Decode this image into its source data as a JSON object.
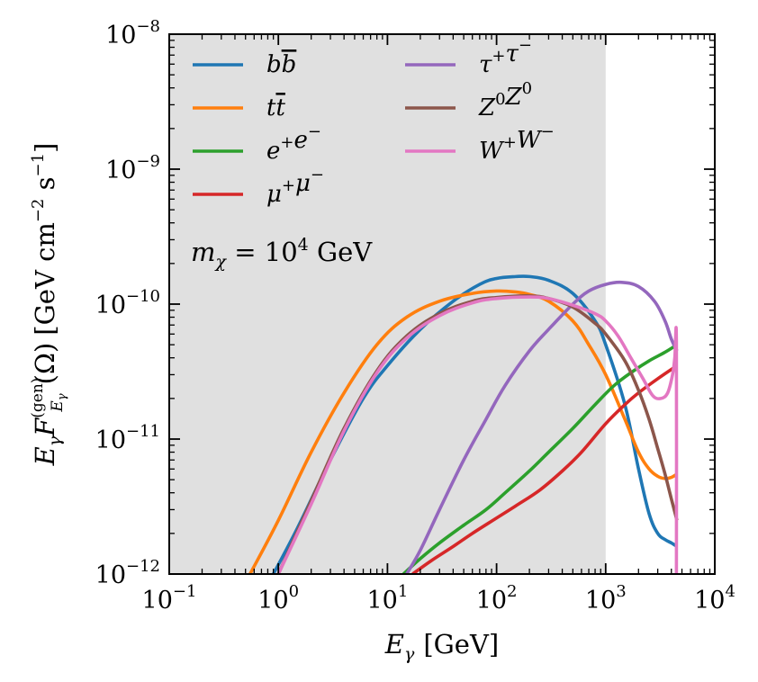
{
  "chart_data": {
    "type": "line",
    "xscale": "log",
    "yscale": "log",
    "xlim": [
      0.1,
      10000
    ],
    "ylim": [
      1e-12,
      1e-08
    ],
    "xlabel": {
      "main": "E",
      "sub": "γ",
      "unit": "[GeV]"
    },
    "ylabel": "E_γ F_{E_γ}^{(gen)}(Ω) [GeV cm^-2 s^-1]",
    "ylabel_parts": {
      "E": "E",
      "gamma": "γ",
      "F": "F",
      "sup": "(gen)",
      "subE": "E",
      "subgamma": "γ",
      "omega": "(Ω)",
      "unit_pre": "[GeV cm",
      "exp1": "−2",
      "unit_mid": " s",
      "exp2": "−1",
      "unit_post": "]"
    },
    "x_ticks": [
      {
        "value": 0.1,
        "base": "10",
        "exp": "−1"
      },
      {
        "value": 1,
        "base": "10",
        "exp": "0"
      },
      {
        "value": 10,
        "base": "10",
        "exp": "1"
      },
      {
        "value": 100,
        "base": "10",
        "exp": "2"
      },
      {
        "value": 1000,
        "base": "10",
        "exp": "3"
      },
      {
        "value": 10000,
        "base": "10",
        "exp": "4"
      }
    ],
    "y_ticks": [
      {
        "value": 1e-12,
        "base": "10",
        "exp": "−12"
      },
      {
        "value": 1e-11,
        "base": "10",
        "exp": "−11"
      },
      {
        "value": 1e-10,
        "base": "10",
        "exp": "−10"
      },
      {
        "value": 1e-09,
        "base": "10",
        "exp": "−9"
      },
      {
        "value": 1e-08,
        "base": "10",
        "exp": "−8"
      }
    ],
    "shaded_region": {
      "x_from": 0.1,
      "x_to": 1000,
      "color": "#e0e0e0"
    },
    "annotation": {
      "m": "m",
      "sub": "χ",
      "eq": " = 10",
      "exp": "4",
      "unit": " GeV"
    },
    "legend_position": "upper-left",
    "series": [
      {
        "name": "bb̄",
        "label_html": "b<tspan style=\"text-decoration:overline\">b</tspan>",
        "label": "b b̄",
        "color": "#1f77b4",
        "x": [
          0.9,
          1.5,
          3,
          6,
          10,
          20,
          40,
          70,
          100,
          150,
          200,
          300,
          500,
          800,
          1000,
          1500,
          2000,
          2500,
          3000,
          3500,
          4000,
          4500
        ],
        "y": [
          1e-12,
          2.2e-12,
          7e-12,
          2e-11,
          3.5e-11,
          6.5e-11,
          1.05e-10,
          1.4e-10,
          1.55e-10,
          1.6e-10,
          1.6e-10,
          1.5e-10,
          1.2e-10,
          7.5e-11,
          5e-11,
          1.8e-11,
          6e-12,
          2.8e-12,
          2e-12,
          1.8e-12,
          1.7e-12,
          1.6e-12
        ]
      },
      {
        "name": "tt̄",
        "label": "t t̄",
        "color": "#ff7f0e",
        "x": [
          0.55,
          1,
          2,
          4,
          8,
          15,
          30,
          60,
          100,
          150,
          200,
          300,
          500,
          700,
          1000,
          1500,
          2000,
          2500,
          3000,
          3500,
          4000,
          4500
        ],
        "y": [
          1e-12,
          2.5e-12,
          8e-12,
          2.2e-11,
          5e-11,
          8e-11,
          1.05e-10,
          1.2e-10,
          1.25e-10,
          1.23e-10,
          1.18e-10,
          1.05e-10,
          7.5e-11,
          5e-11,
          3e-11,
          1.4e-11,
          8e-12,
          6e-12,
          5.3e-12,
          5.1e-12,
          5.2e-12,
          5.5e-12
        ]
      },
      {
        "name": "e+e-",
        "label": "e⁺e⁻",
        "color": "#2ca02c",
        "x": [
          14,
          20,
          30,
          50,
          80,
          120,
          200,
          300,
          500,
          800,
          1200,
          1800,
          2500,
          3500,
          4500
        ],
        "y": [
          1e-12,
          1.3e-12,
          1.7e-12,
          2.3e-12,
          3e-12,
          4e-12,
          5.8e-12,
          8e-12,
          1.2e-11,
          1.8e-11,
          2.5e-11,
          3.2e-11,
          3.8e-11,
          4.4e-11,
          5e-11
        ]
      },
      {
        "name": "μ+μ-",
        "label": "μ⁺μ⁻",
        "color": "#d62728",
        "x": [
          17,
          25,
          40,
          60,
          100,
          150,
          250,
          400,
          600,
          1000,
          1500,
          2000,
          3000,
          4500
        ],
        "y": [
          1e-12,
          1.25e-12,
          1.6e-12,
          2e-12,
          2.6e-12,
          3.2e-12,
          4.2e-12,
          5.8e-12,
          8e-12,
          1.3e-11,
          1.8e-11,
          2.2e-11,
          2.8e-11,
          3.5e-11
        ]
      },
      {
        "name": "τ+τ-",
        "label": "τ⁺τ⁻",
        "color": "#9467bd",
        "x": [
          15,
          20,
          30,
          50,
          80,
          120,
          200,
          300,
          500,
          700,
          1000,
          1400,
          2000,
          2800,
          3500,
          4000,
          4500
        ],
        "y": [
          1e-12,
          1.5e-12,
          3e-12,
          7e-12,
          1.4e-11,
          2.5e-11,
          4.5e-11,
          6.5e-11,
          1e-10,
          1.25e-10,
          1.4e-10,
          1.45e-10,
          1.35e-10,
          1.05e-10,
          7.5e-11,
          5.5e-11,
          4.5e-11
        ]
      },
      {
        "name": "Z0Z0",
        "label": "Z⁰Z⁰",
        "color": "#8c564b",
        "x": [
          1,
          2,
          4,
          8,
          15,
          30,
          60,
          100,
          200,
          300,
          500,
          800,
          1000,
          1500,
          2000,
          2500,
          3000,
          3500,
          4000,
          4500
        ],
        "y": [
          1e-12,
          3.5e-12,
          1.2e-11,
          3.2e-11,
          5.8e-11,
          8.5e-11,
          1.05e-10,
          1.12e-10,
          1.15e-10,
          1.1e-10,
          9.5e-11,
          7.2e-11,
          6e-11,
          3.8e-11,
          2.3e-11,
          1.4e-11,
          8.5e-12,
          5.5e-12,
          3.6e-12,
          2.5e-12
        ]
      },
      {
        "name": "W+W-",
        "label": "W⁺W⁻",
        "color": "#e377c2",
        "x": [
          1,
          2,
          4,
          8,
          15,
          30,
          60,
          100,
          200,
          300,
          500,
          800,
          1000,
          1300,
          1700,
          2200,
          2700,
          3200,
          3700,
          4100,
          4300,
          4450,
          4450
        ],
        "y": [
          1e-12,
          3.3e-12,
          1.15e-11,
          3.1e-11,
          5.6e-11,
          8.2e-11,
          1.02e-10,
          1.1e-10,
          1.13e-10,
          1.1e-10,
          9.8e-11,
          8.5e-11,
          7.5e-11,
          5.8e-11,
          4e-11,
          2.8e-11,
          2.1e-11,
          2e-11,
          2.2e-11,
          3e-11,
          4e-11,
          5.2e-11,
          1e-12
        ]
      }
    ]
  }
}
